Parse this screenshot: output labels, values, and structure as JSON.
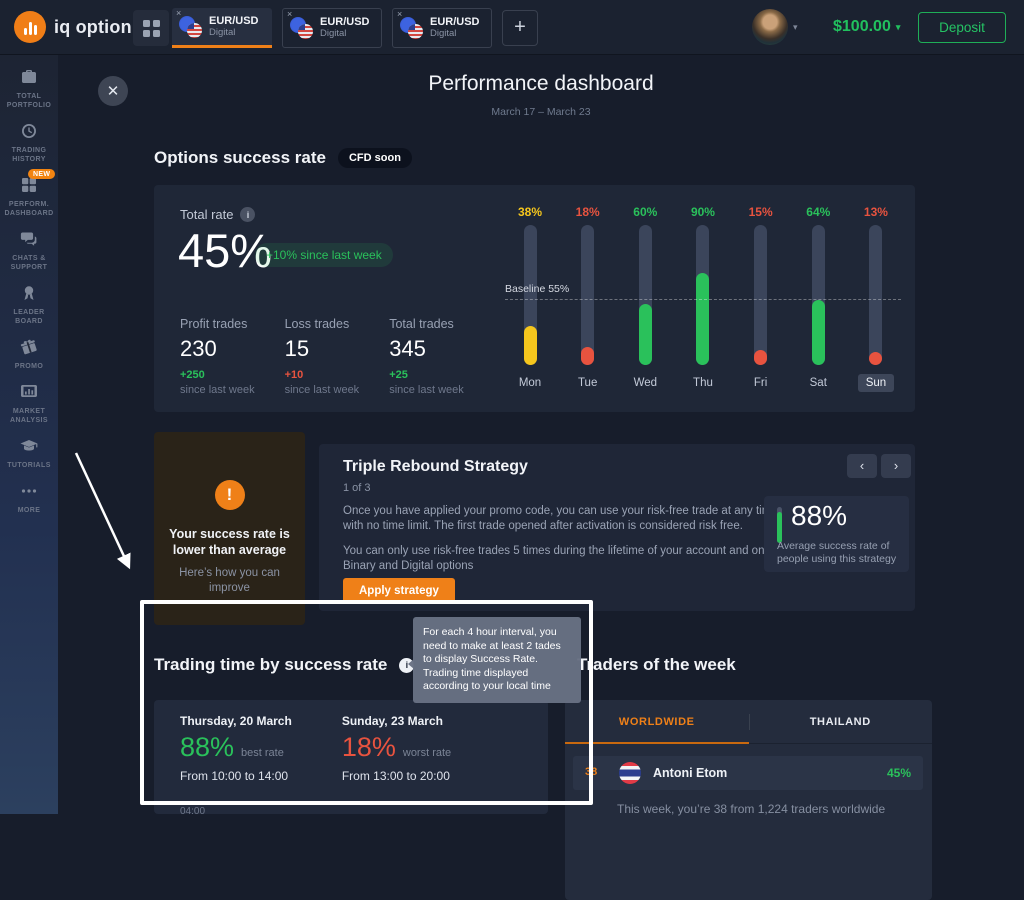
{
  "topbar": {
    "logo_text": "iq option",
    "tabs": [
      {
        "label": "EUR/USD",
        "sub": "Digital",
        "close": "×",
        "active": true
      },
      {
        "label": "EUR/USD",
        "sub": "Digital",
        "close": "×",
        "active": false
      },
      {
        "label": "EUR/USD",
        "sub": "Digital",
        "close": "×",
        "active": false
      }
    ],
    "add_tab_label": "+",
    "balance": "$100.00",
    "deposit_label": "Deposit"
  },
  "sidebar": {
    "items": [
      {
        "icon": "briefcase",
        "label": "TOTAL PORTFOLIO"
      },
      {
        "icon": "clock",
        "label": "TRADING HISTORY"
      },
      {
        "icon": "grid",
        "label": "PERFORM. DASHBOARD",
        "badge": "NEW"
      },
      {
        "icon": "chat",
        "label": "CHATS & SUPPORT"
      },
      {
        "icon": "medal",
        "label": "LEADER BOARD"
      },
      {
        "icon": "gift",
        "label": "PROMO"
      },
      {
        "icon": "market",
        "label": "MARKET ANALYSIS"
      },
      {
        "icon": "cap",
        "label": "TUTORIALS"
      },
      {
        "icon": "dots",
        "label": "MORE"
      }
    ]
  },
  "header": {
    "title": "Performance dashboard",
    "date_range": "March 17 – March 23",
    "close_icon": "✕"
  },
  "success_rate": {
    "heading": "Options success rate",
    "badge": "CFD soon",
    "total_rate_label": "Total rate",
    "info_icon": "i",
    "total_rate": "45%",
    "change_badge": "+10% since last week",
    "stats": [
      {
        "label": "Profit trades",
        "value": "230",
        "change": "+250",
        "change_color": "#2ac15b",
        "caption": "since last week"
      },
      {
        "label": "Loss trades",
        "value": "15",
        "change": "+10",
        "change_color": "#e8533f",
        "caption": "since last week"
      },
      {
        "label": "Total trades",
        "value": "345",
        "change": "+25",
        "change_color": "#2ac15b",
        "caption": "since last week"
      }
    ]
  },
  "chart_data": {
    "type": "bar",
    "title": "Options success rate by day of week",
    "categories": [
      "Mon",
      "Tue",
      "Wed",
      "Thu",
      "Fri",
      "Sat",
      "Sun"
    ],
    "values": [
      38,
      18,
      60,
      90,
      15,
      64,
      13
    ],
    "value_suffix": "%",
    "colors": [
      "#f5c61d",
      "#e8533f",
      "#2ac15b",
      "#2ac15b",
      "#e8533f",
      "#2ac15b",
      "#e8533f"
    ],
    "baseline": 55,
    "baseline_label": "Baseline 55%",
    "highlighted_category": "Sun",
    "ylim": [
      0,
      100
    ],
    "grid": false,
    "legend": false
  },
  "warning_card": {
    "icon": "!",
    "title": "Your success rate is lower than average",
    "subtitle": "Here’s how you can improve"
  },
  "strategy": {
    "title": "Triple Rebound Strategy",
    "step": "1 of 3",
    "p1": "Once you have applied your promo code, you can use your risk-free trade at any time, with no time limit. The first trade opened after activation is considered risk free.",
    "p2": "You can only use risk-free trades 5 times during the lifetime of your account and only on Binary and Digital options",
    "button_label": "Apply strategy",
    "prev_icon": "‹",
    "next_icon": "›",
    "avg_rate": "88%",
    "avg_caption": "Average success rate of people using this strategy"
  },
  "trading_time": {
    "heading": "Trading time by success rate",
    "info_icon": "i",
    "tooltip_line1": "For each 4 hour interval, you need to make at least 2 tades to display Success Rate.",
    "tooltip_line2": "Trading time displayed according to your local time",
    "cards": [
      {
        "date": "Thursday, 20 March",
        "rate": "88%",
        "rate_color": "#2ac15b",
        "note": "best rate",
        "time": "From 10:00 to 14:00"
      },
      {
        "date": "Sunday, 23 March",
        "rate": "18%",
        "rate_color": "#e8533f",
        "note": "worst rate",
        "time": "From 13:00 to 20:00"
      }
    ],
    "clipped_label": "04:00"
  },
  "traders": {
    "heading": "Traders of the week",
    "tabs": [
      {
        "label": "WORLDWIDE",
        "active": true
      },
      {
        "label": "THAILAND",
        "active": false
      }
    ],
    "row": {
      "rank": "38",
      "flag": "thailand-flag",
      "name": "Antoni Etom",
      "rate": "45%"
    },
    "footer": "This week, you’re 38 from 1,224 traders worldwide"
  },
  "colors": {
    "accent_orange": "#ef8018",
    "green": "#2ac15b",
    "red": "#e8533f",
    "yellow": "#f5c61d",
    "balance_green": "#21c05e"
  }
}
